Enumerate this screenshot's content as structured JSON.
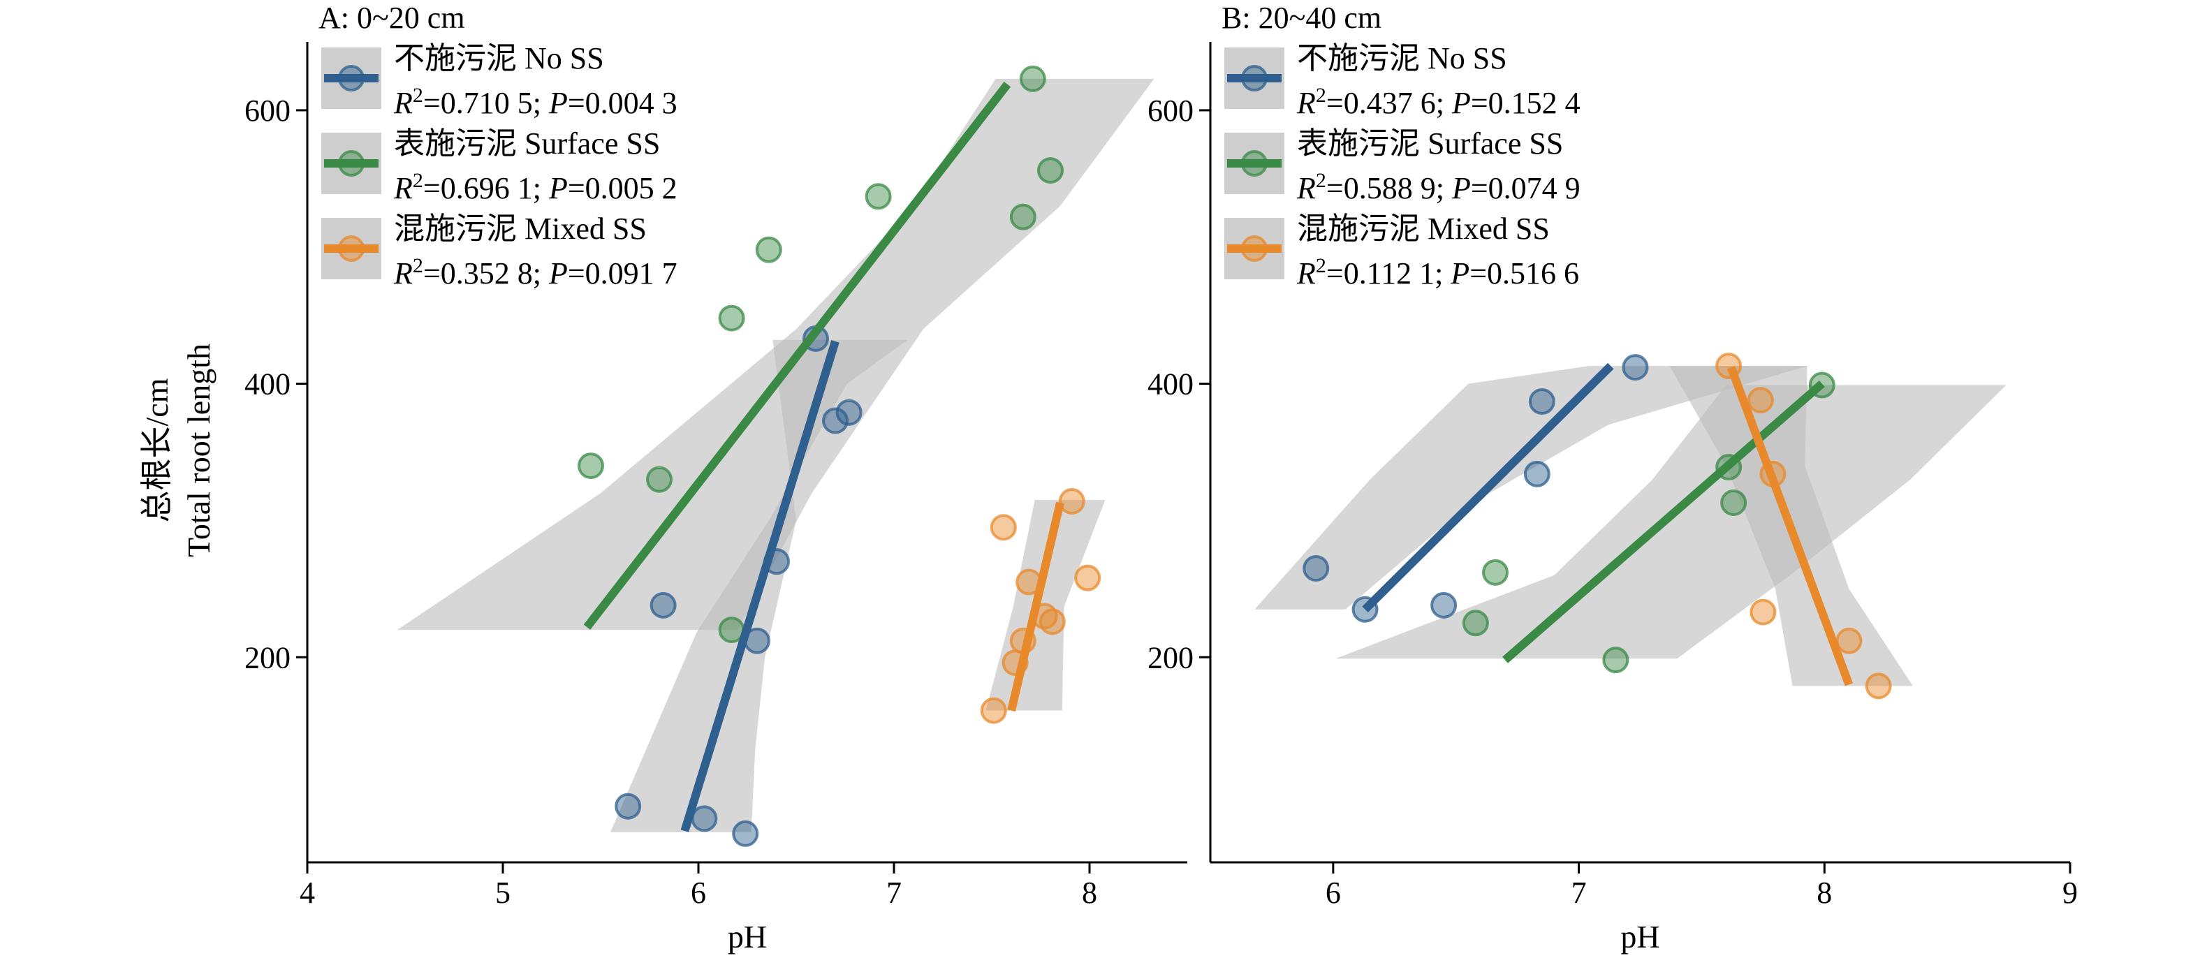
{
  "figure": {
    "ylabel_line1": "总根长/cm",
    "ylabel_line2": "Total root length"
  },
  "chart_data": [
    {
      "type": "scatter",
      "title": "A: 0~20 cm",
      "xlabel": "pH",
      "ylabel": "总根长/cm Total root length",
      "xlim": [
        4,
        8.5
      ],
      "ylim": [
        50,
        650
      ],
      "xticks": [
        4,
        5,
        6,
        7,
        8
      ],
      "yticks": [
        200,
        400,
        600
      ],
      "grid": false,
      "legend_position": "top-left",
      "series": [
        {
          "name": "不施污泥 No SS",
          "stats": "R²=0.710 5; P=0.004 3",
          "color": "#2e5f8f",
          "x": [
            5.64,
            5.82,
            6.03,
            6.24,
            6.3,
            6.4,
            6.6,
            6.7,
            6.77
          ],
          "y": [
            91,
            238,
            82,
            71,
            212,
            270,
            433,
            373,
            379
          ],
          "fit": {
            "x": [
              5.93,
              6.7
            ],
            "y": [
              73,
              431
            ]
          },
          "band": {
            "x_upper": [
              5.55,
              5.99,
              6.36,
              6.76,
              7.07
            ],
            "upper": [
              72,
              218,
              300,
              400,
              432
            ],
            "x_lower": [
              6.27,
              6.29,
              6.34,
              6.5,
              6.38
            ],
            "lower": [
              72,
              132,
              200,
              300,
              432
            ]
          }
        },
        {
          "name": "表施污泥 Surface SS",
          "stats": "R²=0.696 1; P=0.005 2",
          "color": "#3a8a45",
          "x": [
            5.45,
            5.8,
            6.17,
            6.17,
            6.36,
            6.92,
            7.66,
            7.71,
            7.8
          ],
          "y": [
            340,
            330,
            220,
            448,
            498,
            537,
            522,
            623,
            556
          ],
          "fit": {
            "x": [
              5.43,
              7.58
            ],
            "y": [
              222,
              619
            ]
          },
          "band": {
            "x_upper": [
              4.46,
              5.5,
              6.5,
              7.1,
              7.52
            ],
            "upper": [
              220,
              320,
              440,
              530,
              623
            ],
            "x_lower": [
              6.2,
              6.58,
              7.15,
              7.85,
              8.33
            ],
            "lower": [
              220,
              320,
              440,
              530,
              623
            ]
          }
        },
        {
          "name": "混施污泥 Mixed SS",
          "stats": "R²=0.352 8; P=0.091 7",
          "color": "#e8892b",
          "x": [
            7.51,
            7.56,
            7.62,
            7.66,
            7.69,
            7.77,
            7.81,
            7.91,
            7.99
          ],
          "y": [
            161,
            295,
            196,
            212,
            255,
            230,
            226,
            314,
            258
          ],
          "fit": {
            "x": [
              7.6,
              7.85
            ],
            "y": [
              161,
              313
            ]
          },
          "band": {
            "x_upper": [
              7.47,
              7.61,
              7.72
            ],
            "upper": [
              161,
              237,
              315
            ],
            "x_lower": [
              7.86,
              7.87,
              8.08
            ],
            "lower": [
              161,
              237,
              315
            ]
          }
        }
      ]
    },
    {
      "type": "scatter",
      "title": "B: 20~40 cm",
      "xlabel": "pH",
      "ylabel": "",
      "xlim": [
        5.5,
        9
      ],
      "ylim": [
        50,
        650
      ],
      "xticks": [
        6,
        7,
        8,
        9
      ],
      "yticks": [
        200,
        400,
        600
      ],
      "grid": false,
      "legend_position": "top-left",
      "series": [
        {
          "name": "不施污泥 No SS",
          "stats": "R²=0.437 6; P=0.152 4",
          "color": "#2e5f8f",
          "x": [
            5.93,
            6.13,
            6.45,
            6.83,
            6.85,
            7.23
          ],
          "y": [
            265,
            235,
            238,
            334,
            387,
            412
          ],
          "fit": {
            "x": [
              6.13,
              7.13
            ],
            "y": [
              235,
              413
            ]
          },
          "band": {
            "x_upper": [
              5.68,
              6.15,
              6.55,
              7.04
            ],
            "upper": [
              235,
              330,
              400,
              413
            ],
            "x_lower": [
              6.05,
              6.54,
              7.12,
              7.93
            ],
            "lower": [
              235,
              310,
              370,
              413
            ]
          }
        },
        {
          "name": "表施污泥 Surface SS",
          "stats": "R²=0.588 9; P=0.074 9",
          "color": "#3a8a45",
          "x": [
            6.58,
            6.66,
            7.15,
            7.61,
            7.63,
            7.99
          ],
          "y": [
            225,
            262,
            198,
            339,
            313,
            399
          ],
          "fit": {
            "x": [
              6.7,
              7.99
            ],
            "y": [
              198,
              400
            ]
          },
          "band": {
            "x_upper": [
              6.01,
              6.9,
              7.3,
              7.6
            ],
            "upper": [
              199,
              260,
              330,
              399
            ],
            "x_lower": [
              7.4,
              7.86,
              8.35,
              8.74
            ],
            "lower": [
              199,
              260,
              330,
              399
            ]
          }
        },
        {
          "name": "混施污泥 Mixed SS",
          "stats": "R²=0.112 1; P=0.516 6",
          "color": "#e8892b",
          "x": [
            7.61,
            7.74,
            7.75,
            7.79,
            8.1,
            8.22
          ],
          "y": [
            413,
            388,
            233,
            334,
            212,
            179
          ],
          "fit": {
            "x": [
              7.62,
              8.1
            ],
            "y": [
              412,
              180
            ]
          },
          "band": {
            "x_upper": [
              7.37,
              7.6,
              7.8,
              7.87
            ],
            "upper": [
              413,
              340,
              250,
              179
            ],
            "x_lower": [
              7.93,
              7.92,
              8.1,
              8.36
            ],
            "lower": [
              413,
              340,
              250,
              179
            ]
          }
        }
      ]
    }
  ]
}
